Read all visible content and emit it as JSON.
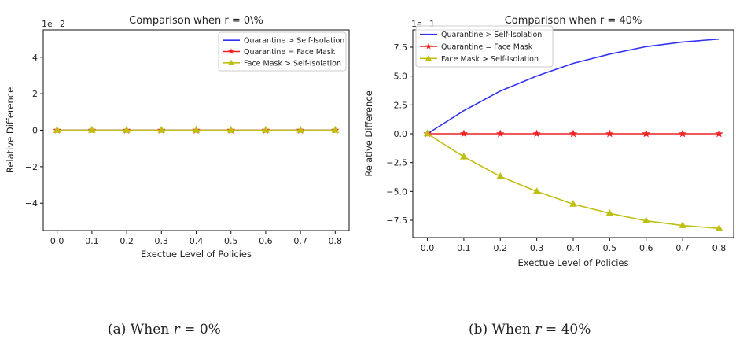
{
  "chart_data": [
    {
      "type": "line",
      "title": "Comparison  when r = 0\\%",
      "xlabel": "Exectue Level of Policies",
      "ylabel": "Relative Difference",
      "axis_multiplier": "1e−2",
      "x": [
        0.0,
        0.1,
        0.2,
        0.3,
        0.4,
        0.5,
        0.6,
        0.7,
        0.8
      ],
      "xticks": [
        "0.0",
        "0.1",
        "0.2",
        "0.3",
        "0.4",
        "0.5",
        "0.6",
        "0.7",
        "0.8"
      ],
      "xlim": [
        -0.04,
        0.84
      ],
      "yticks": [
        -4,
        -2,
        0,
        2,
        4
      ],
      "ytick_labels": [
        "−4",
        "−2",
        "0",
        "2",
        "4"
      ],
      "ylim": [
        -5.5,
        5.5
      ],
      "legend_position": "upper-right",
      "grid": false,
      "series": [
        {
          "name": "Quarantine > Self-Isolation",
          "color": "#3333ee",
          "marker": "none",
          "values": [
            0,
            0,
            0,
            0,
            0,
            0,
            0,
            0,
            0
          ]
        },
        {
          "name": "Quarantine = Face Mask",
          "color": "#ee2222",
          "marker": "star",
          "values": [
            0,
            0,
            0,
            0,
            0,
            0,
            0,
            0,
            0
          ]
        },
        {
          "name": "Face Mask > Self-Isolation",
          "color": "#bfbf11",
          "marker": "triangle",
          "values": [
            0,
            0,
            0,
            0,
            0,
            0,
            0,
            0,
            0
          ]
        }
      ]
    },
    {
      "type": "line",
      "title": "Comparison when r = 40%",
      "xlabel": "Exectue Level of Policies",
      "ylabel": "Relative Difference",
      "axis_multiplier": "1e−1",
      "x": [
        0.0,
        0.1,
        0.2,
        0.3,
        0.4,
        0.5,
        0.6,
        0.7,
        0.8
      ],
      "xticks": [
        "0.0",
        "0.1",
        "0.2",
        "0.3",
        "0.4",
        "0.5",
        "0.6",
        "0.7",
        "0.8"
      ],
      "xlim": [
        -0.04,
        0.84
      ],
      "yticks": [
        -7.5,
        -5.0,
        -2.5,
        0.0,
        2.5,
        5.0,
        7.5
      ],
      "ytick_labels": [
        "−7.5",
        "−5.0",
        "−2.5",
        "0.0",
        "2.5",
        "5.0",
        "7.5"
      ],
      "ylim": [
        -9.0,
        9.0
      ],
      "legend_position": "upper-left",
      "grid": false,
      "series": [
        {
          "name": "Quarantine > Self-Isolation",
          "color": "#3333ee",
          "marker": "none",
          "values": [
            0,
            2.0,
            3.7,
            5.0,
            6.1,
            6.9,
            7.55,
            7.95,
            8.2
          ]
        },
        {
          "name": "Quarantine = Face Mask",
          "color": "#ee2222",
          "marker": "star",
          "values": [
            0,
            0,
            0,
            0,
            0,
            0,
            0,
            0,
            0
          ]
        },
        {
          "name": "Face Mask > Self-Isolation",
          "color": "#bfbf11",
          "marker": "triangle",
          "values": [
            0,
            -2.0,
            -3.7,
            -5.0,
            -6.1,
            -6.9,
            -7.55,
            -7.95,
            -8.2
          ]
        }
      ]
    }
  ],
  "captions": [
    {
      "label": "(a) When ",
      "var": "r",
      "text": " = 0%"
    },
    {
      "label": "(b) When ",
      "var": "r",
      "text": " = 40%"
    }
  ]
}
